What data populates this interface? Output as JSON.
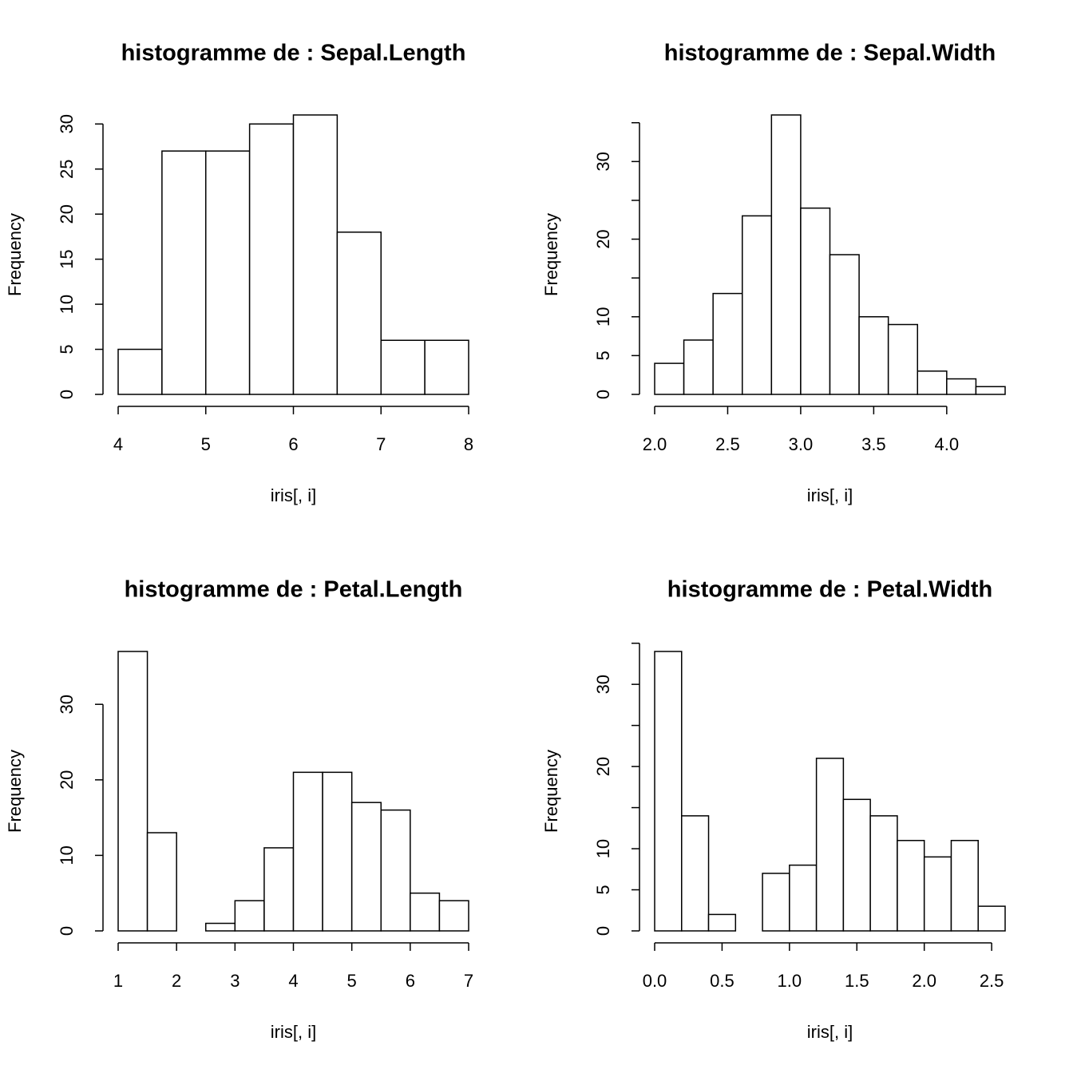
{
  "chart_data": [
    {
      "type": "histogram",
      "title": "histogramme de : Sepal.Length",
      "xlabel": "iris[, i]",
      "ylabel": "Frequency",
      "bins": [
        4,
        4.5,
        5,
        5.5,
        6,
        6.5,
        7,
        7.5,
        8
      ],
      "values": [
        5,
        27,
        27,
        30,
        31,
        18,
        6,
        6
      ],
      "color": "#ffffff",
      "xlim": [
        4,
        8
      ],
      "xticks": [
        4,
        5,
        6,
        7,
        8
      ],
      "ylim": [
        0,
        31
      ],
      "yticks": [
        0,
        5,
        10,
        15,
        20,
        25,
        30
      ]
    },
    {
      "type": "histogram",
      "title": "histogramme de : Sepal.Width",
      "xlabel": "iris[, i]",
      "ylabel": "Frequency",
      "bins": [
        2.0,
        2.2,
        2.4,
        2.6,
        2.8,
        3.0,
        3.2,
        3.4,
        3.6,
        3.8,
        4.0,
        4.2,
        4.4
      ],
      "values": [
        4,
        7,
        13,
        23,
        36,
        24,
        18,
        10,
        9,
        3,
        2,
        1
      ],
      "color": "#ffffff",
      "xlim": [
        2.0,
        4.4
      ],
      "xticks": [
        {
          "value": 2,
          "label": "2.0"
        },
        2.5,
        {
          "value": 3,
          "label": "3.0"
        },
        3.5,
        {
          "value": 4,
          "label": "4.0"
        }
      ],
      "ylim": [
        0,
        36
      ],
      "yticks": [
        0,
        5,
        10,
        15,
        20,
        25,
        30,
        35
      ]
    },
    {
      "type": "histogram",
      "title": "histogramme de : Petal.Length",
      "xlabel": "iris[, i]",
      "ylabel": "Frequency",
      "bins": [
        1,
        1.5,
        2,
        2.5,
        3,
        3.5,
        4,
        4.5,
        5,
        5.5,
        6,
        6.5,
        7
      ],
      "values": [
        37,
        13,
        0,
        1,
        4,
        11,
        21,
        21,
        17,
        16,
        5,
        4
      ],
      "color": "#ffffff",
      "xlim": [
        1,
        7
      ],
      "xticks": [
        1,
        2,
        3,
        4,
        5,
        6,
        7
      ],
      "ylim": [
        0,
        37
      ],
      "yticks": [
        0,
        10,
        20,
        30
      ]
    },
    {
      "type": "histogram",
      "title": "histogramme de : Petal.Width",
      "xlabel": "iris[, i]",
      "ylabel": "Frequency",
      "bins": [
        0,
        0.2,
        0.4,
        0.6,
        0.8,
        1.0,
        1.2,
        1.4,
        1.6,
        1.8,
        2.0,
        2.2,
        2.4,
        2.6
      ],
      "values": [
        34,
        14,
        2,
        0,
        7,
        8,
        21,
        16,
        14,
        11,
        9,
        11,
        3
      ],
      "color": "#ffffff",
      "xlim": [
        0,
        2.6
      ],
      "xticks": [
        {
          "value": 0,
          "label": "0.0"
        },
        0.5,
        {
          "value": 1,
          "label": "1.0"
        },
        1.5,
        {
          "value": 2,
          "label": "2.0"
        },
        2.5
      ],
      "ylim": [
        0,
        34
      ],
      "yticks": [
        0,
        5,
        10,
        15,
        20,
        25,
        30,
        35
      ]
    }
  ]
}
